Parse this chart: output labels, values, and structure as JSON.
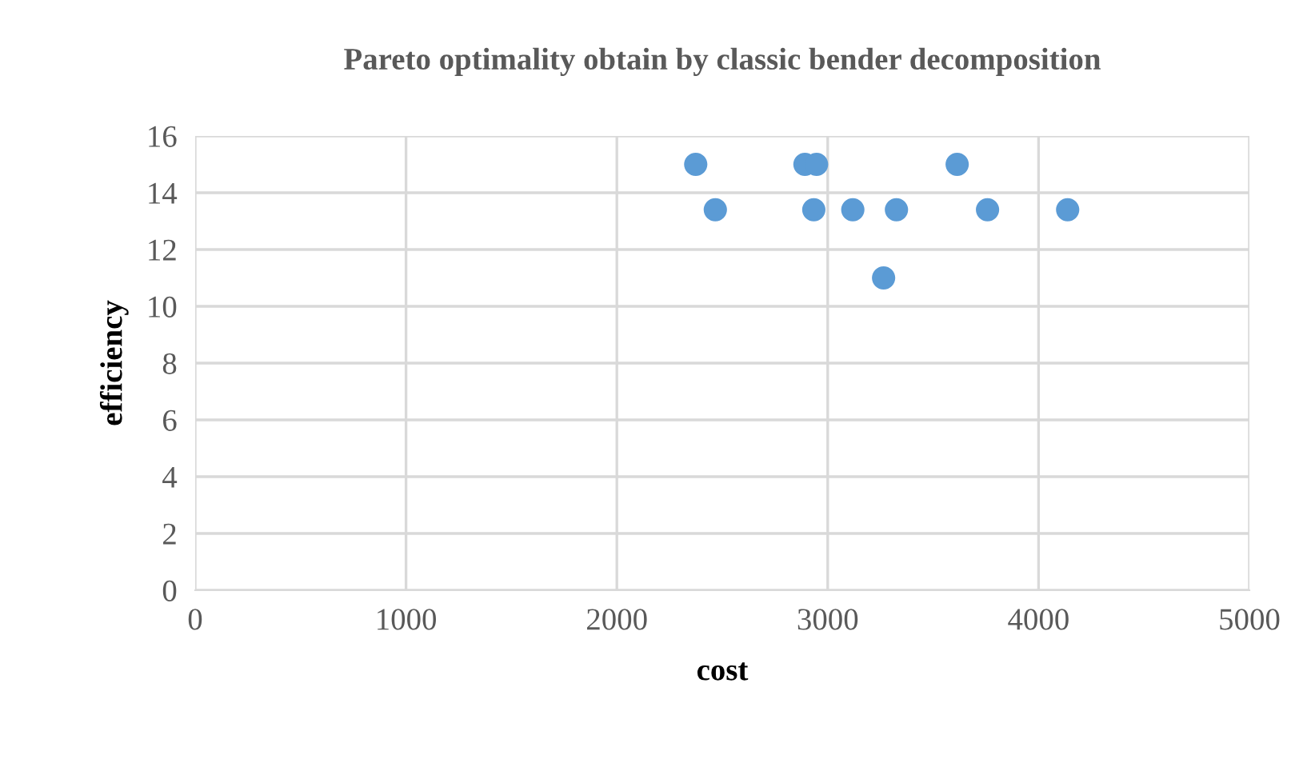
{
  "chart_data": {
    "type": "scatter",
    "title": "Pareto optimality obtain by classic bender decomposition",
    "xlabel": "cost",
    "ylabel": "efficiency",
    "series": [
      {
        "color": "#5b9bd5",
        "x": [
          2374,
          2892,
          2947,
          3614,
          2467,
          2934,
          3119,
          3326,
          3758,
          4138,
          3265
        ],
        "values": [
          15,
          15,
          15,
          15,
          13.4,
          13.4,
          13.4,
          13.4,
          13.4,
          13.4,
          11
        ]
      }
    ],
    "xlim": [
      0,
      5000
    ],
    "xticks": [
      0,
      1000,
      2000,
      3000,
      4000,
      5000
    ],
    "ylim": [
      0,
      16
    ],
    "yticks": [
      0,
      2,
      4,
      6,
      8,
      10,
      12,
      14,
      16
    ],
    "grid": true,
    "marker": "circle",
    "legend": false
  }
}
